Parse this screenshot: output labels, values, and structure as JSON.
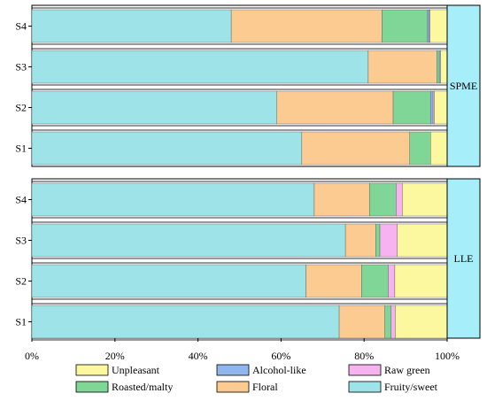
{
  "chart_data": {
    "type": "bar",
    "orientation": "horizontal",
    "stacked": true,
    "normalized_percent": true,
    "x_ticks": [
      "0%",
      "20%",
      "40%",
      "60%",
      "80%",
      "100%"
    ],
    "xlim": [
      0,
      100
    ],
    "legend_placement": "bottom",
    "series": [
      {
        "name": "Fruity/sweet",
        "color": "#9de3e8"
      },
      {
        "name": "Floral",
        "color": "#fbcb91"
      },
      {
        "name": "Roasted/malty",
        "color": "#7fd696"
      },
      {
        "name": "Alcohol-like",
        "color": "#8fb7ee"
      },
      {
        "name": "Raw green",
        "color": "#f7b3f0"
      },
      {
        "name": "Unpleasant",
        "color": "#fbf8a0"
      }
    ],
    "legend_order": [
      "Unpleasant",
      "Alcohol-like",
      "Raw green",
      "Roasted/malty",
      "Floral",
      "Fruity/sweet"
    ],
    "panels": [
      {
        "label": "SPME",
        "categories": [
          "S4",
          "S3",
          "S2",
          "S1"
        ],
        "values": [
          [
            48.0,
            36.3,
            11.0,
            0.4,
            0.2,
            4.1
          ],
          [
            81.0,
            16.5,
            0.6,
            0.3,
            0.0,
            1.6
          ],
          [
            59.0,
            28.0,
            9.0,
            0.6,
            0.3,
            3.1
          ],
          [
            65.0,
            26.0,
            5.0,
            0.0,
            0.0,
            4.0
          ]
        ]
      },
      {
        "label": "LLE",
        "categories": [
          "S4",
          "S3",
          "S2",
          "S1"
        ],
        "values": [
          [
            68.0,
            13.3,
            6.4,
            0.0,
            1.5,
            10.8
          ],
          [
            75.5,
            7.3,
            1.0,
            0.0,
            4.2,
            12.0
          ],
          [
            66.0,
            13.4,
            6.4,
            0.0,
            1.6,
            12.6
          ],
          [
            74.0,
            11.0,
            1.5,
            0.0,
            1.0,
            12.5
          ]
        ]
      }
    ]
  }
}
